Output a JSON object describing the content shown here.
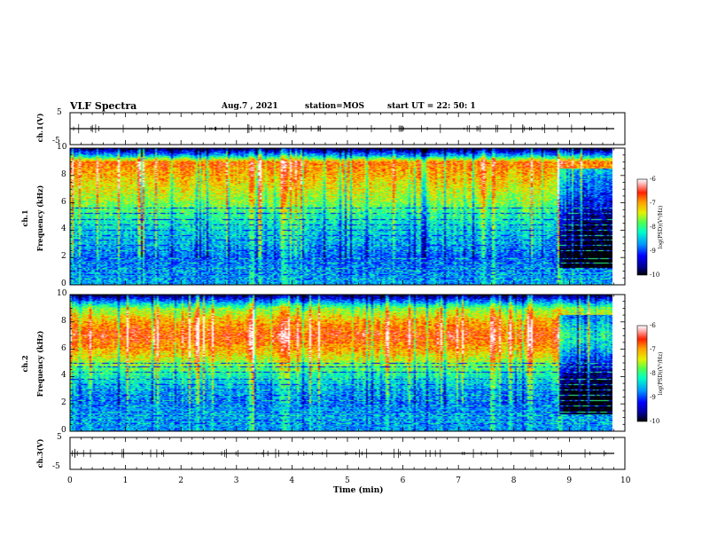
{
  "header": {
    "title": "VLF Spectra",
    "date": "Aug.7 , 2021",
    "station": "station=MOS",
    "start": "start UT = 22: 50: 1"
  },
  "colors": {
    "spectrum_ramp": [
      "#000000",
      "#00008b",
      "#0000ff",
      "#0096ff",
      "#00ffc8",
      "#50ff50",
      "#e6f000",
      "#ffa000",
      "#ff2000",
      "#ffb4b4",
      "#ffffff"
    ]
  },
  "chart_data": [
    {
      "type": "line",
      "name": "ch1-waveform",
      "ylabel": "ch.1(V)",
      "ylim": [
        -5,
        5
      ],
      "yticks": [
        "5",
        "-5"
      ],
      "x": [
        0,
        10
      ],
      "y": [
        0,
        0
      ]
    },
    {
      "type": "heatmap",
      "name": "ch1-spectrogram",
      "ylabel": "ch.1\nFrequency (kHz)",
      "ylim": [
        0,
        10
      ],
      "xlim": [
        0,
        9.85
      ],
      "yticks": [
        "0",
        "2",
        "4",
        "6",
        "8",
        "10"
      ],
      "colorbar": {
        "label": "log(PSD)(V²/Hz)",
        "range": [
          -10,
          -6
        ],
        "ticks": [
          "-6",
          "-7",
          "-8",
          "-9",
          "-10"
        ]
      },
      "profile": {
        "freq_khz": [
          0,
          1,
          2,
          3,
          4,
          5,
          6,
          7,
          8,
          9,
          9.5,
          10
        ],
        "level": [
          -8.6,
          -8.7,
          -8.9,
          -8.6,
          -8.4,
          -8.1,
          -7.7,
          -7.4,
          -7.1,
          -6.8,
          -8.6,
          -9.8
        ]
      },
      "lines_khz": [
        0.4,
        0.7,
        1.0,
        1.2,
        1.6,
        1.9,
        2.5,
        2.9,
        3.3,
        3.6,
        4.0,
        4.4,
        4.8,
        5.2,
        5.6
      ],
      "events_min": [
        3.3,
        3.9,
        7.7,
        8.9
      ],
      "quiet_after_min": 8.9
    },
    {
      "type": "heatmap",
      "name": "ch2-spectrogram",
      "ylabel": "ch.2\nFrequency (kHz)",
      "ylim": [
        0,
        10
      ],
      "xlim": [
        0,
        9.85
      ],
      "yticks": [
        "0",
        "2",
        "4",
        "6",
        "8",
        "10"
      ],
      "colorbar": {
        "label": "log(PSD)(V²/Hz)",
        "range": [
          -10,
          -6
        ],
        "ticks": [
          "-6",
          "-7",
          "-8",
          "-9",
          "-10"
        ]
      },
      "profile": {
        "freq_khz": [
          0,
          1,
          2,
          3,
          4,
          5,
          6,
          7,
          8,
          9,
          9.6,
          10
        ],
        "level": [
          -8.7,
          -8.6,
          -8.8,
          -8.6,
          -8.2,
          -7.6,
          -7.0,
          -6.6,
          -7.0,
          -7.7,
          -8.9,
          -9.8
        ]
      },
      "lines_khz": [
        0.5,
        0.8,
        1.1,
        1.4,
        1.8,
        2.2,
        2.6,
        3.0,
        3.4,
        3.8,
        4.3,
        4.7,
        5.0
      ],
      "events_min": [
        3.3,
        3.9,
        7.7,
        8.9
      ],
      "quiet_after_min": 8.9
    },
    {
      "type": "line",
      "name": "ch3-waveform",
      "ylabel": "ch.3(V)",
      "ylim": [
        -5,
        5
      ],
      "yticks": [
        "5",
        "-5"
      ],
      "x": [
        0,
        10
      ],
      "y": [
        0,
        0
      ]
    }
  ],
  "xaxis": {
    "label": "Time (min)",
    "ticks": [
      "0",
      "1",
      "2",
      "3",
      "4",
      "5",
      "6",
      "7",
      "8",
      "9",
      "10"
    ]
  }
}
